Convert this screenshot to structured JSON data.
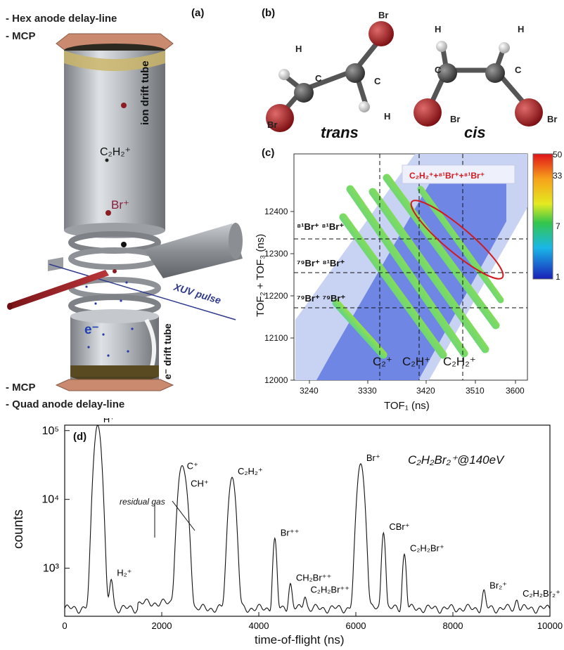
{
  "panel_a": {
    "tag": "(a)",
    "top_label_1": "- Hex anode delay-line",
    "top_label_2": "- MCP",
    "bottom_label_1": "- MCP",
    "bottom_label_2": "- Quad anode delay-line",
    "ion_tube": "ion drift tube",
    "e_tube": "e⁻ drift tube",
    "ion_c2h2": "C₂H₂⁺",
    "ion_br": "Br⁺",
    "electron": "e⁻",
    "xuv": "XUV pulse"
  },
  "panel_b": {
    "tag": "(b)",
    "trans": "trans",
    "cis": "cis",
    "atom_h": "H",
    "atom_c": "C",
    "atom_br": "Br"
  },
  "panel_c": {
    "tag": "(c)",
    "ylabel": "TOF₂ + TOF₃ (ns)",
    "xlabel": "TOF₁ (ns)",
    "yticks": [
      "12000",
      "12100",
      "12200",
      "12300",
      "12400"
    ],
    "xticks": [
      "3240",
      "3330",
      "3420",
      "3510",
      "3600"
    ],
    "colorbar_ticks": [
      "50",
      "33",
      "7",
      "1"
    ],
    "highlight": "C₂H₂⁺+⁸¹Br⁺+⁸¹Br⁺",
    "row_labels": [
      "⁸¹Br⁺ ⁸¹Br⁺",
      "⁷⁹Br⁺ ⁸¹Br⁺",
      "⁷⁹Br⁺ ⁷⁹Br⁺"
    ],
    "col_labels": [
      "C₂⁺",
      "C₂H⁺",
      "C₂H₂⁺"
    ]
  },
  "chart_data": {
    "type": "line",
    "title": "",
    "xlabel": "time-of-flight (ns)",
    "ylabel": "counts",
    "xlim": [
      0,
      10000
    ],
    "ylim": [
      200,
      120000
    ],
    "yscale": "log",
    "xticks": [
      "0",
      "2000",
      "4000",
      "6000",
      "8000",
      "10000"
    ],
    "yticks": [
      "10³",
      "10⁴",
      "10⁵"
    ],
    "annotation_formula": "C₂H₂Br₂⁺@140eV",
    "annotation_residual": "residual gas",
    "panel_tag": "(d)",
    "peaks": [
      {
        "label": "H⁺",
        "x": 680,
        "y": 120000
      },
      {
        "label": "H₂⁺",
        "x": 960,
        "y": 700
      },
      {
        "label": "C⁺",
        "x": 2400,
        "y": 25000
      },
      {
        "label": "CH⁺",
        "x": 2480,
        "y": 14000
      },
      {
        "label": "C₂H₂⁺",
        "x": 3450,
        "y": 21000
      },
      {
        "label": "Br⁺⁺",
        "x": 4330,
        "y": 2700
      },
      {
        "label": "CH₂Br⁺⁺",
        "x": 4650,
        "y": 600
      },
      {
        "label": "C₂H₂Br⁺⁺",
        "x": 4950,
        "y": 400
      },
      {
        "label": "Br⁺",
        "x": 6100,
        "y": 33000
      },
      {
        "label": "CBr⁺",
        "x": 6570,
        "y": 3300
      },
      {
        "label": "C₂H₂Br⁺",
        "x": 7000,
        "y": 1600
      },
      {
        "label": "Br₂⁺",
        "x": 8640,
        "y": 460
      },
      {
        "label": "C₂H₂Br₂⁺",
        "x": 9320,
        "y": 350
      }
    ]
  }
}
